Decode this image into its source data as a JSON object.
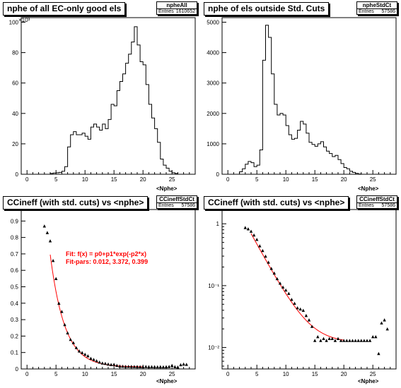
{
  "pads": [
    {
      "title": "nphe of all EC-only good els",
      "stats": {
        "name": "npheAll",
        "entries_label": "Entries",
        "entries": "1610652"
      },
      "x_unit": "<Nphe>",
      "y_exponent": "×10³"
    },
    {
      "title": "nphe of els outside Std. Cuts",
      "stats": {
        "name": "npheStdCt",
        "entries_label": "Entries",
        "entries": "57586"
      },
      "x_unit": "<Nphe>"
    },
    {
      "title": "CCineff (with std. cuts) vs <nphe>",
      "stats": {
        "name": "CCineffStdCt",
        "entries_label": "Entries",
        "entries": "57586"
      },
      "x_unit": "<Nphe>",
      "fit": {
        "line1": "Fit: f(x) = p0+p1*exp(-p2*x)",
        "line2": "Fit-pars: 0.012, 3.372, 0.399"
      }
    },
    {
      "title": "CCineff (with std. cuts) vs <nphe>",
      "stats": {
        "name": "CCineffStdCt",
        "entries_label": "Entries",
        "entries": "57586"
      },
      "x_unit": "<Nphe>"
    }
  ],
  "chart_data": [
    {
      "type": "bar",
      "title": "nphe of all EC-only good els",
      "xlabel": "<Nphe>",
      "ylabel": "",
      "xlim": [
        -1,
        29
      ],
      "ylim": [
        0,
        103
      ],
      "xticks": [
        0,
        5,
        10,
        15,
        20,
        25
      ],
      "yticks": [
        0,
        20,
        40,
        60,
        80,
        100
      ],
      "bin_width": 0.5,
      "x_start": 4.0,
      "values": [
        0.5,
        0.8,
        1,
        1.2,
        2,
        5,
        18,
        26,
        28,
        26,
        26,
        27,
        25,
        23,
        31,
        33,
        31,
        29,
        33,
        30,
        36,
        46,
        45,
        55,
        61,
        66,
        73,
        79,
        87,
        97,
        85,
        74,
        72,
        59,
        46,
        37,
        30,
        21,
        10,
        6,
        4,
        2,
        1,
        0.5
      ]
    },
    {
      "type": "bar",
      "title": "nphe of els outside Std. Cuts",
      "xlabel": "<Nphe>",
      "ylabel": "",
      "xlim": [
        -1,
        29
      ],
      "ylim": [
        0,
        5150
      ],
      "xticks": [
        0,
        5,
        10,
        15,
        20,
        25
      ],
      "yticks": [
        0,
        1000,
        2000,
        3000,
        4000,
        5000
      ],
      "bin_width": 0.5,
      "x_start": 2.0,
      "values": [
        80,
        180,
        330,
        420,
        380,
        250,
        300,
        800,
        3750,
        4900,
        4500,
        3300,
        2300,
        1950,
        2000,
        1950,
        1600,
        1300,
        1150,
        1180,
        1450,
        1740,
        1650,
        1350,
        1050,
        980,
        920,
        1000,
        1070,
        900,
        760,
        680,
        580,
        620,
        480,
        350,
        220,
        180,
        100,
        60,
        30,
        10
      ]
    },
    {
      "type": "scatter",
      "title": "CCineff (with std. cuts) vs <nphe>",
      "xlabel": "<Nphe>",
      "ylabel": "",
      "xlim": [
        -1,
        29
      ],
      "ylim": [
        0,
        0.97
      ],
      "xticks": [
        0,
        5,
        10,
        15,
        20,
        25
      ],
      "yticks": [
        0,
        0.1,
        0.2,
        0.3,
        0.4,
        0.5,
        0.6,
        0.7,
        0.8,
        0.9
      ],
      "x": [
        3.0,
        3.5,
        4.0,
        4.5,
        5.0,
        5.5,
        6.0,
        6.5,
        7.0,
        7.5,
        8.0,
        8.5,
        9.0,
        9.5,
        10.0,
        10.5,
        11.0,
        11.5,
        12.0,
        12.5,
        13.0,
        13.5,
        14.0,
        14.5,
        15.0,
        15.5,
        16.0,
        16.5,
        17.0,
        17.5,
        18.0,
        18.5,
        19.0,
        19.5,
        20.0,
        20.5,
        21.0,
        21.5,
        22.0,
        22.5,
        23.0,
        23.5,
        24.0,
        24.5,
        25.0,
        25.5,
        26.0,
        26.5,
        27.0,
        27.5
      ],
      "y": [
        0.87,
        0.83,
        0.78,
        0.66,
        0.55,
        0.4,
        0.35,
        0.27,
        0.22,
        0.18,
        0.16,
        0.13,
        0.11,
        0.1,
        0.09,
        0.08,
        0.065,
        0.058,
        0.05,
        0.042,
        0.036,
        0.034,
        0.03,
        0.027,
        0.028,
        0.022,
        0.018,
        0.017,
        0.016,
        0.016,
        0.016,
        0.015,
        0.015,
        0.014,
        0.014,
        0.015,
        0.014,
        0.014,
        0.014,
        0.013,
        0.014,
        0.013,
        0.014,
        0.015,
        0.022,
        0.014,
        0.012,
        0.026,
        0.03,
        0.028
      ],
      "fit_params": [
        0.012,
        3.372,
        0.399
      ],
      "fit_range": [
        4.0,
        20.0
      ]
    },
    {
      "type": "scatter",
      "title": "CCineff (with std. cuts) vs <nphe>",
      "xlabel": "<Nphe>",
      "ylabel": "",
      "log_y": true,
      "xlim": [
        -1,
        29
      ],
      "ylim": [
        0.0045,
        1.7
      ],
      "xticks": [
        0,
        5,
        10,
        15,
        20,
        25
      ],
      "yticks": [
        0.01,
        0.1,
        1
      ],
      "ytick_labels": [
        "10⁻²",
        "10⁻¹",
        "1"
      ],
      "x": [
        3.0,
        3.5,
        4.0,
        4.5,
        5.0,
        5.5,
        6.0,
        6.5,
        7.0,
        7.5,
        8.0,
        8.5,
        9.0,
        9.5,
        10.0,
        10.5,
        11.0,
        11.5,
        12.0,
        12.5,
        13.0,
        13.5,
        14.0,
        14.5,
        15.0,
        15.5,
        16.0,
        16.5,
        17.0,
        17.5,
        18.0,
        18.5,
        19.0,
        19.5,
        20.0,
        20.5,
        21.0,
        21.5,
        22.0,
        22.5,
        23.0,
        23.5,
        24.0,
        24.5,
        25.0,
        25.5,
        26.0,
        26.5,
        27.0,
        27.5
      ],
      "y": [
        0.87,
        0.83,
        0.76,
        0.66,
        0.56,
        0.44,
        0.37,
        0.3,
        0.24,
        0.19,
        0.16,
        0.13,
        0.11,
        0.095,
        0.085,
        0.075,
        0.06,
        0.052,
        0.044,
        0.042,
        0.04,
        0.033,
        0.028,
        0.022,
        0.013,
        0.015,
        0.013,
        0.014,
        0.013,
        0.014,
        0.014,
        0.013,
        0.014,
        0.013,
        0.013,
        0.013,
        0.013,
        0.013,
        0.013,
        0.013,
        0.013,
        0.013,
        0.013,
        0.013,
        0.015,
        0.015,
        0.008,
        0.025,
        0.028,
        0.02
      ],
      "fit_params": [
        0.012,
        3.372,
        0.399
      ],
      "fit_range": [
        4.0,
        20.0
      ]
    }
  ]
}
